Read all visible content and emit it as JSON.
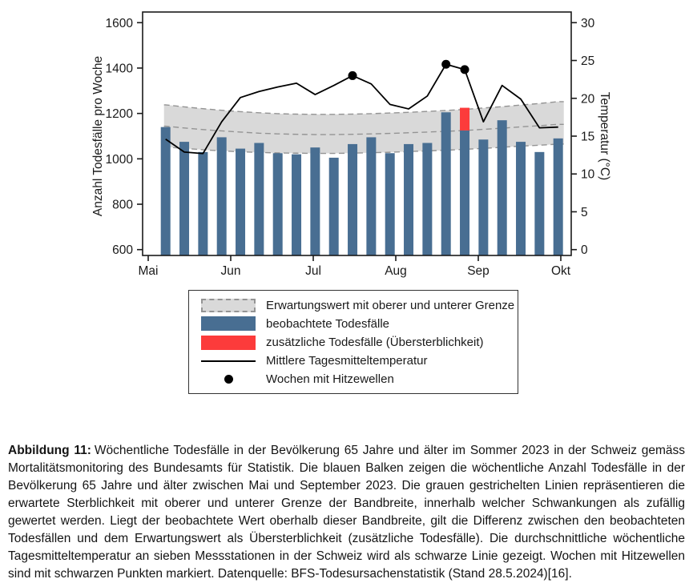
{
  "chart_data": {
    "type": "bar",
    "title": "",
    "weeks": 22,
    "y_left": {
      "label": "Anzahl Todesfälle pro Woche",
      "ticks": [
        600,
        800,
        1000,
        1200,
        1400,
        1600
      ],
      "range": [
        600,
        1600
      ]
    },
    "y_right": {
      "label": "Temperatur (°C)",
      "ticks": [
        0,
        5,
        10,
        15,
        20,
        25,
        30
      ],
      "range": [
        0,
        30
      ]
    },
    "x_months": [
      "Mai",
      "Jun",
      "Jul",
      "Aug",
      "Sep",
      "Okt"
    ],
    "grid": false,
    "legend_position": "bottom",
    "observed_deaths": [
      1140,
      1075,
      1030,
      1095,
      1045,
      1070,
      1025,
      1020,
      1050,
      1005,
      1065,
      1095,
      1025,
      1065,
      1070,
      1205,
      1225,
      1085,
      1170,
      1075,
      1030,
      1090
    ],
    "expected_deaths": [
      1144,
      1136,
      1129,
      1123,
      1118,
      1113,
      1110,
      1108,
      1107,
      1107,
      1108,
      1110,
      1112,
      1115,
      1118,
      1121,
      1125,
      1130,
      1135,
      1141,
      1146,
      1152
    ],
    "expected_upper": [
      1238,
      1229,
      1221,
      1214,
      1208,
      1203,
      1199,
      1197,
      1196,
      1196,
      1197,
      1199,
      1202,
      1205,
      1209,
      1213,
      1218,
      1224,
      1230,
      1237,
      1244,
      1252
    ],
    "expected_lower": [
      1052,
      1046,
      1040,
      1035,
      1031,
      1028,
      1026,
      1025,
      1024,
      1024,
      1025,
      1027,
      1029,
      1032,
      1035,
      1038,
      1042,
      1046,
      1051,
      1056,
      1060,
      1065
    ],
    "excess": {
      "week": 17,
      "from": 1125,
      "to": 1225
    },
    "temperature_weekly_mean": [
      14.6,
      12.9,
      12.7,
      16.9,
      20.1,
      20.9,
      21.5,
      22.0,
      20.5,
      21.7,
      23.0,
      21.9,
      19.2,
      18.6,
      20.3,
      24.5,
      23.8,
      16.9,
      21.7,
      19.9,
      16.1,
      16.2
    ],
    "heatwave_weeks": [
      11,
      16,
      17
    ]
  },
  "colors": {
    "bar_blue": "#486e92",
    "excess_red": "#fc3b3b",
    "band_fill": "#d9d9d9",
    "band_dash": "#949494",
    "line_black": "#000000",
    "axis": "#1a1a1a"
  },
  "legend": {
    "items": [
      {
        "swatch": "band",
        "label": "Erwartungswert mit oberer und unterer Grenze"
      },
      {
        "swatch": "bar-blue",
        "label": "beobachtete Todesfälle"
      },
      {
        "swatch": "bar-red",
        "label": "zusätzliche Todesfälle (Übersterblichkeit)"
      },
      {
        "swatch": "line",
        "label": "Mittlere Tagesmitteltemperatur"
      },
      {
        "swatch": "dot",
        "label": "Wochen mit Hitzewellen"
      }
    ]
  },
  "caption": {
    "label": "Abbildung 11:",
    "text": "Wöchentliche Todesfälle in der Bevölkerung 65 Jahre und älter im Sommer 2023 in der Schweiz gemäss Mortalitätsmonitoring des Bundesamts für Statistik. Die blauen Balken zeigen die wöchentliche Anzahl Todesfälle in der Bevölkerung 65 Jahre und älter zwischen Mai und September 2023. Die grauen gestrichelten Linien repräsentieren die erwartete Sterblichkeit mit oberer und unterer Grenze der Bandbreite, innerhalb welcher Schwankungen als zufällig gewertet werden. Liegt der beobachtete Wert oberhalb dieser Bandbreite, gilt die Differenz zwischen den beobachteten Todesfällen und dem Erwartungswert als Übersterblichkeit (zusätzliche Todesfälle). Die durchschnittliche wöchentliche Tagesmitteltemperatur an sieben Messstationen in der Schweiz wird als schwarze Linie gezeigt. Wochen mit Hitzewellen sind mit schwarzen Punkten markiert. Datenquelle: BFS-Todesursachenstatistik (Stand 28.5.2024)[16]."
  }
}
